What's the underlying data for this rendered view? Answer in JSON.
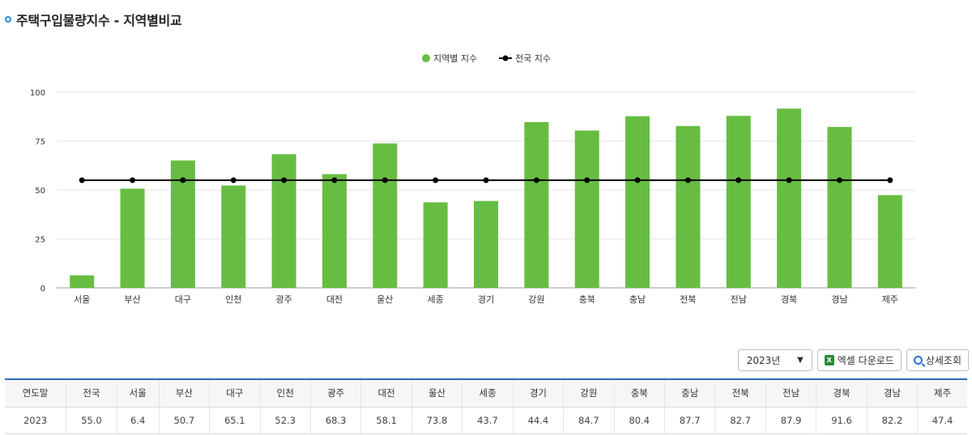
{
  "header": {
    "title": "주택구입물량지수 - 지역별비교"
  },
  "legend": {
    "bar_label": "지역별 지수",
    "line_label": "전국 지수"
  },
  "colors": {
    "bar": "#67bd42",
    "line": "#000000",
    "accent": "#2a8fd6",
    "table_border": "#2a6fb6"
  },
  "chart_data": {
    "type": "bar",
    "categories": [
      "서울",
      "부산",
      "대구",
      "인천",
      "광주",
      "대전",
      "울산",
      "세종",
      "경기",
      "강원",
      "충북",
      "충남",
      "전북",
      "전남",
      "경북",
      "경남",
      "제주"
    ],
    "series": [
      {
        "name": "지역별 지수",
        "type": "bar",
        "values": [
          6.4,
          50.7,
          65.1,
          52.3,
          68.3,
          58.1,
          73.8,
          43.7,
          44.4,
          84.7,
          80.4,
          87.7,
          82.7,
          87.9,
          91.6,
          82.2,
          47.4
        ]
      },
      {
        "name": "전국 지수",
        "type": "line",
        "values": [
          55.0,
          55.0,
          55.0,
          55.0,
          55.0,
          55.0,
          55.0,
          55.0,
          55.0,
          55.0,
          55.0,
          55.0,
          55.0,
          55.0,
          55.0,
          55.0,
          55.0
        ]
      }
    ],
    "yticks": [
      "0",
      "25",
      "50",
      "75",
      "100"
    ],
    "ylim": [
      0,
      100
    ],
    "title": "주택구입물량지수 - 지역별비교",
    "legend_position": "top-center"
  },
  "controls": {
    "year_value": "2023년",
    "excel_label": "엑셀 다운로드",
    "search_label": "상세조회"
  },
  "table": {
    "headers": [
      "연도말",
      "전국",
      "서울",
      "부산",
      "대구",
      "인천",
      "광주",
      "대전",
      "울산",
      "세종",
      "경기",
      "강원",
      "충북",
      "충남",
      "전북",
      "전남",
      "경북",
      "경남",
      "제주"
    ],
    "rows": [
      [
        "2023",
        "55.0",
        "6.4",
        "50.7",
        "65.1",
        "52.3",
        "68.3",
        "58.1",
        "73.8",
        "43.7",
        "44.4",
        "84.7",
        "80.4",
        "87.7",
        "82.7",
        "87.9",
        "91.6",
        "82.2",
        "47.4"
      ]
    ]
  }
}
